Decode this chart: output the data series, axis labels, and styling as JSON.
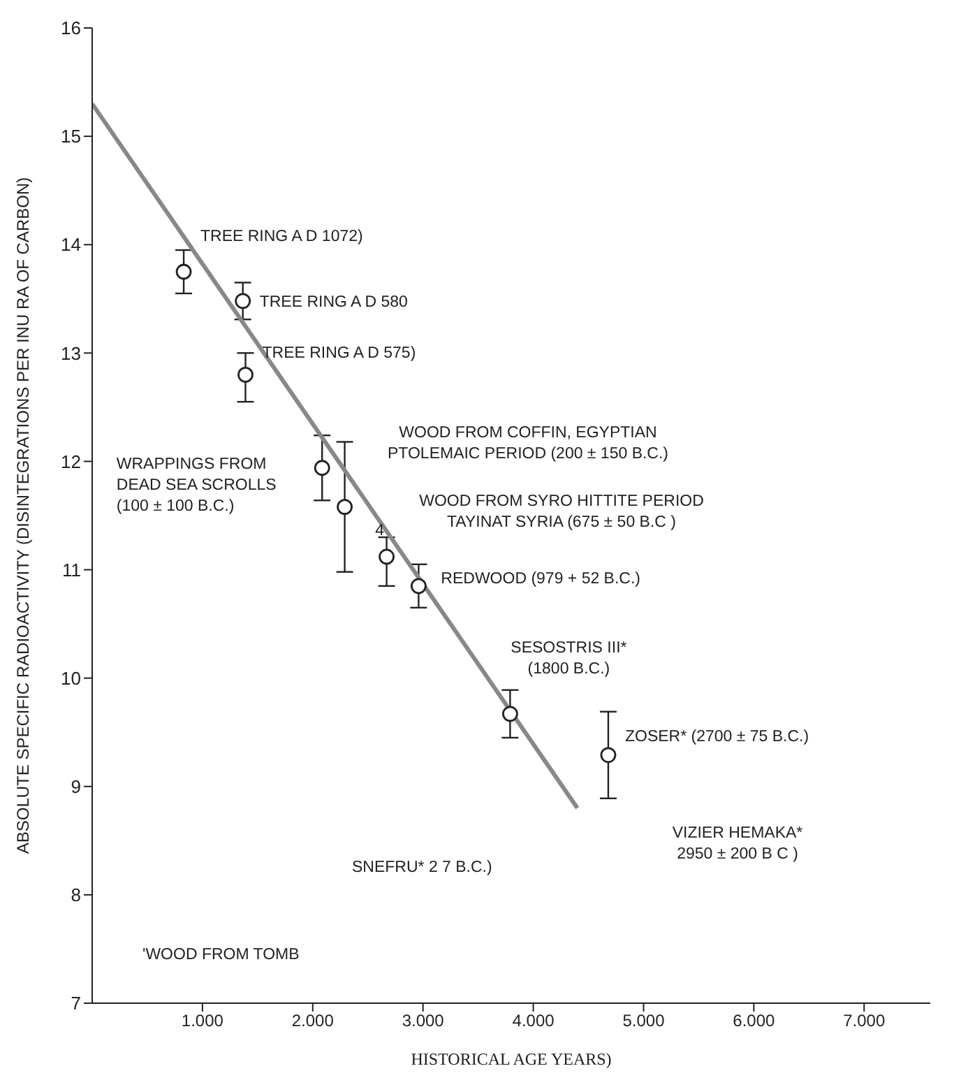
{
  "chart_data": {
    "type": "scatter",
    "xlabel": "HISTORICAL AGE  YEARS)",
    "ylabel": "ABSOLUTE SPECIFIC RADIOACTIVITY (DISINTEGRATIONS PER INU  RA  OF CARBON)",
    "xlim": [
      0,
      7600
    ],
    "xticks": [
      {
        "value": 1000,
        "label": "1.000"
      },
      {
        "value": 2000,
        "label": "2.000"
      },
      {
        "value": 3000,
        "label": "3.000"
      },
      {
        "value": 4000,
        "label": "4.000"
      },
      {
        "value": 5000,
        "label": "5.000"
      },
      {
        "value": 6000,
        "label": "6.000"
      },
      {
        "value": 7000,
        "label": "7.000"
      }
    ],
    "ylim": [
      7,
      16
    ],
    "yticks": [
      7,
      8,
      9,
      10,
      11,
      12,
      13,
      14,
      15,
      16
    ],
    "series": [
      {
        "marker": "circle",
        "color": "#222222",
        "x": [
          830,
          1366,
          1390,
          2085,
          2290,
          2670,
          2960,
          3790,
          4680
        ],
        "values": [
          13.75,
          13.48,
          12.8,
          11.94,
          11.58,
          11.12,
          10.85,
          9.67,
          9.29
        ],
        "errors": [
          0.2,
          0.17,
          [
            12.55,
            13.0
          ],
          0.3,
          0.6,
          [
            10.85,
            11.3
          ],
          0.2,
          0.22,
          0.4
        ]
      },
      {
        "type": "line",
        "marker": "none",
        "color": "#888888",
        "x": [
          0,
          4400
        ],
        "values": [
          15.3,
          8.8
        ]
      }
    ],
    "annotations": [
      {
        "text": "TREE RING  A D 1072)",
        "x": 830,
        "y": 13.75
      },
      {
        "text": "TREE RING  A D 580",
        "x": 1366,
        "y": 13.48
      },
      {
        "text": "TREE RING  A D 575)",
        "x": 1390,
        "y": 12.8
      },
      "WRAPPINGS FROM\nDEAD SEA SCROLLS\n(100 ± 100 B.C.)",
      "WOOD FROM COFFIN, EGYPTIAN\nPTOLEMAIC PERIOD  (200 ± 150 B.C.)",
      "WOOD FROM SYRO HITTITE PERIOD\nTAYINAT  SYRIA (675 ± 50 B.C )",
      {
        "text": "REDWOOD (979 + 52 B.C.)",
        "x": 2960,
        "y": 10.85
      },
      {
        "text": "SESOSTRIS III*\n(1800 B.C.)",
        "x": 3790,
        "y": 9.67
      },
      {
        "text": "ZOSER* (2700 ± 75 B.C.)",
        "x": 4680,
        "y": 9.29
      },
      "4",
      "VIZIER HEMAKA*\n2950 ± 200 B C )",
      "SNEFRU*  2        7 B.C.)",
      "'WOOD  FROM TOMB"
    ]
  }
}
